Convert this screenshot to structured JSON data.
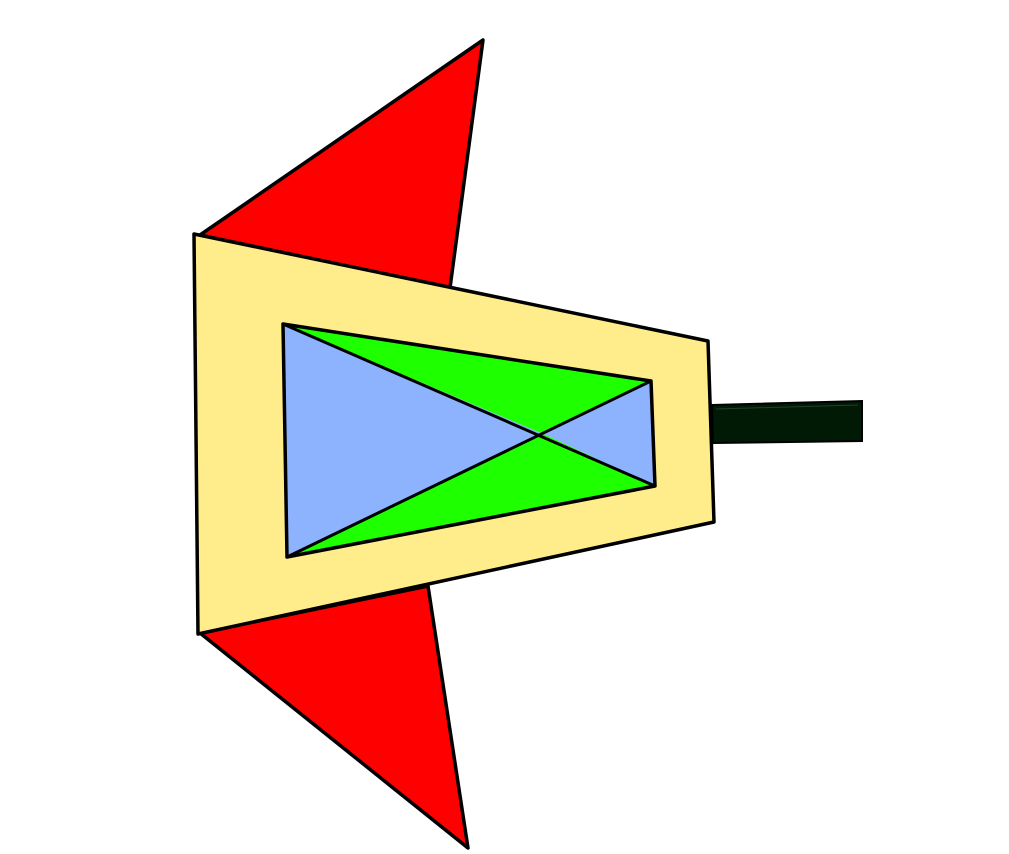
{
  "sprite": {
    "colors": {
      "background": "#ffffff",
      "outline": "#000000",
      "wing": "#ff0000",
      "hull": "#ffec8b",
      "panel_side": "#8db3ff",
      "panel_center": "#1eff00",
      "cannon": "#001a05"
    },
    "parts": [
      "top-wing",
      "bottom-wing",
      "hull",
      "cockpit-panel",
      "cannon-barrel"
    ]
  }
}
